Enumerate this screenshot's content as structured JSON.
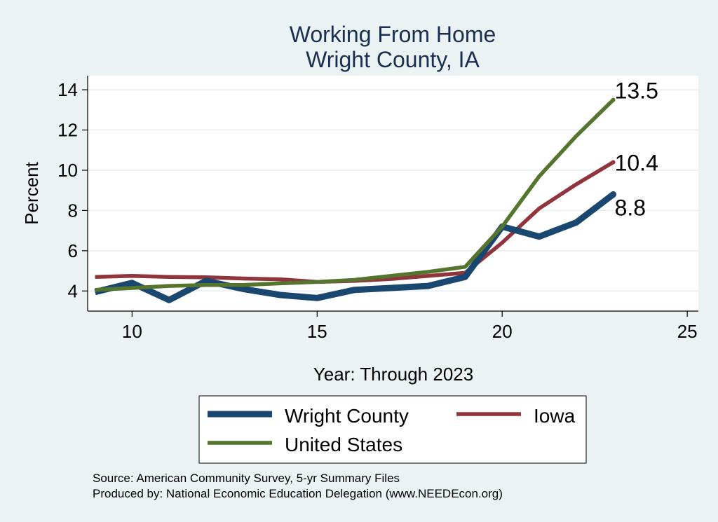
{
  "chart_data": {
    "type": "line",
    "title": "Working From Home",
    "subtitle": "Wright County, IA",
    "xlabel": "Year: Through 2023",
    "ylabel": "Percent",
    "xlim": [
      8.8,
      25.3
    ],
    "ylim": [
      3.0,
      14.7
    ],
    "x_ticks": [
      10,
      15,
      20,
      25
    ],
    "y_ticks": [
      4,
      6,
      8,
      10,
      12,
      14
    ],
    "grid": true,
    "legend_position": "bottom",
    "x": [
      9,
      10,
      11,
      12,
      13,
      14,
      15,
      16,
      17,
      18,
      19,
      20,
      21,
      22,
      23
    ],
    "series": [
      {
        "name": "Wright County",
        "color": "#1a476f",
        "values": [
          3.95,
          4.4,
          3.55,
          4.5,
          4.1,
          3.8,
          3.65,
          4.05,
          4.15,
          4.25,
          4.7,
          7.2,
          6.7,
          7.4,
          8.8
        ],
        "end_label": "8.8"
      },
      {
        "name": "Iowa",
        "color": "#90353b",
        "values": [
          4.7,
          4.75,
          4.7,
          4.68,
          4.62,
          4.58,
          4.45,
          4.5,
          4.6,
          4.75,
          4.9,
          6.4,
          8.1,
          9.3,
          10.4
        ],
        "end_label": "10.4"
      },
      {
        "name": "United States",
        "color": "#55752f",
        "values": [
          4.05,
          4.15,
          4.25,
          4.3,
          4.3,
          4.38,
          4.45,
          4.55,
          4.75,
          4.95,
          5.2,
          7.2,
          9.7,
          11.7,
          13.5
        ],
        "end_label": "13.5"
      }
    ]
  },
  "notes": {
    "source": "Source: American Community Survey, 5-yr Summary Files",
    "produced_by": "Produced by: National Economic Education Delegation (www.NEEDEcon.org)"
  }
}
